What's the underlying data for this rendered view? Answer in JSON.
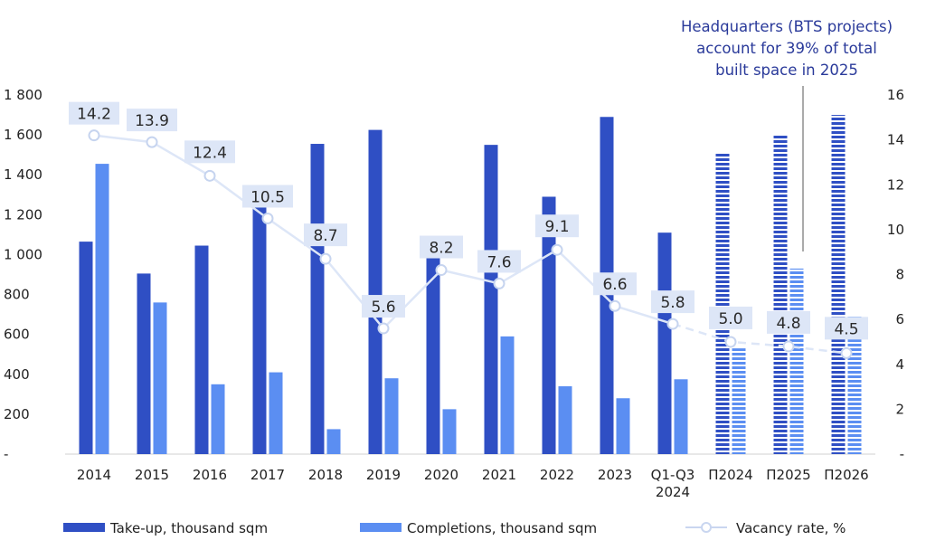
{
  "chart_data": {
    "type": "bar",
    "categories": [
      "2014",
      "2015",
      "2016",
      "2017",
      "2018",
      "2019",
      "2020",
      "2021",
      "2022",
      "2023",
      "Q1-Q3\n2024",
      "П2024",
      "П2025",
      "П2026"
    ],
    "forecast_categories": [
      "П2024",
      "П2025",
      "П2026"
    ],
    "series": [
      {
        "name": "Take-up, thousand sqm",
        "type": "bar",
        "axis": "left",
        "color": "#2f4fc4",
        "values": [
          1065,
          905,
          1045,
          1240,
          1555,
          1625,
          990,
          1550,
          1290,
          1690,
          1110,
          1510,
          1600,
          1700
        ]
      },
      {
        "name": "Completions, thousand sqm",
        "type": "bar",
        "axis": "left",
        "color": "#5b8ef2",
        "values": [
          1455,
          760,
          350,
          410,
          125,
          380,
          225,
          590,
          340,
          280,
          375,
          530,
          930,
          690
        ]
      },
      {
        "name": "Vacancy rate, %",
        "type": "line",
        "axis": "right",
        "color": "#dde6f7",
        "values": [
          14.2,
          13.9,
          12.4,
          10.5,
          8.7,
          5.6,
          8.2,
          7.6,
          9.1,
          6.6,
          5.8,
          5.0,
          4.8,
          4.5
        ],
        "labels": [
          "14.2",
          "13.9",
          "12.4",
          "10.5",
          "8.7",
          "5.6",
          "8.2",
          "7.6",
          "9.1",
          "6.6",
          "5.8",
          "5.0",
          "4.8",
          "4.5"
        ]
      }
    ],
    "y_left": {
      "range": [
        0,
        1800
      ],
      "ticks": [
        "-",
        "200",
        "400",
        "600",
        "800",
        "1 000",
        "1 200",
        "1 400",
        "1 600",
        "1 800"
      ]
    },
    "y_right": {
      "range": [
        0,
        16
      ],
      "ticks": [
        "-",
        "2",
        "4",
        "6",
        "8",
        "10",
        "12",
        "14",
        "16"
      ]
    },
    "grid": false,
    "legend_position": "bottom"
  },
  "annotation": {
    "lines": [
      "Headquarters (BTS projects)",
      "account for 39% of total",
      "built space in 2025"
    ],
    "color": "#2a3a9a"
  },
  "legend": [
    {
      "name": "Take-up, thousand sqm",
      "marker": "bar",
      "color": "#2f4fc4"
    },
    {
      "name": "Completions, thousand sqm",
      "marker": "bar",
      "color": "#5b8ef2"
    },
    {
      "name": "Vacancy rate, %",
      "marker": "line",
      "color": "#c9d6f0"
    }
  ]
}
